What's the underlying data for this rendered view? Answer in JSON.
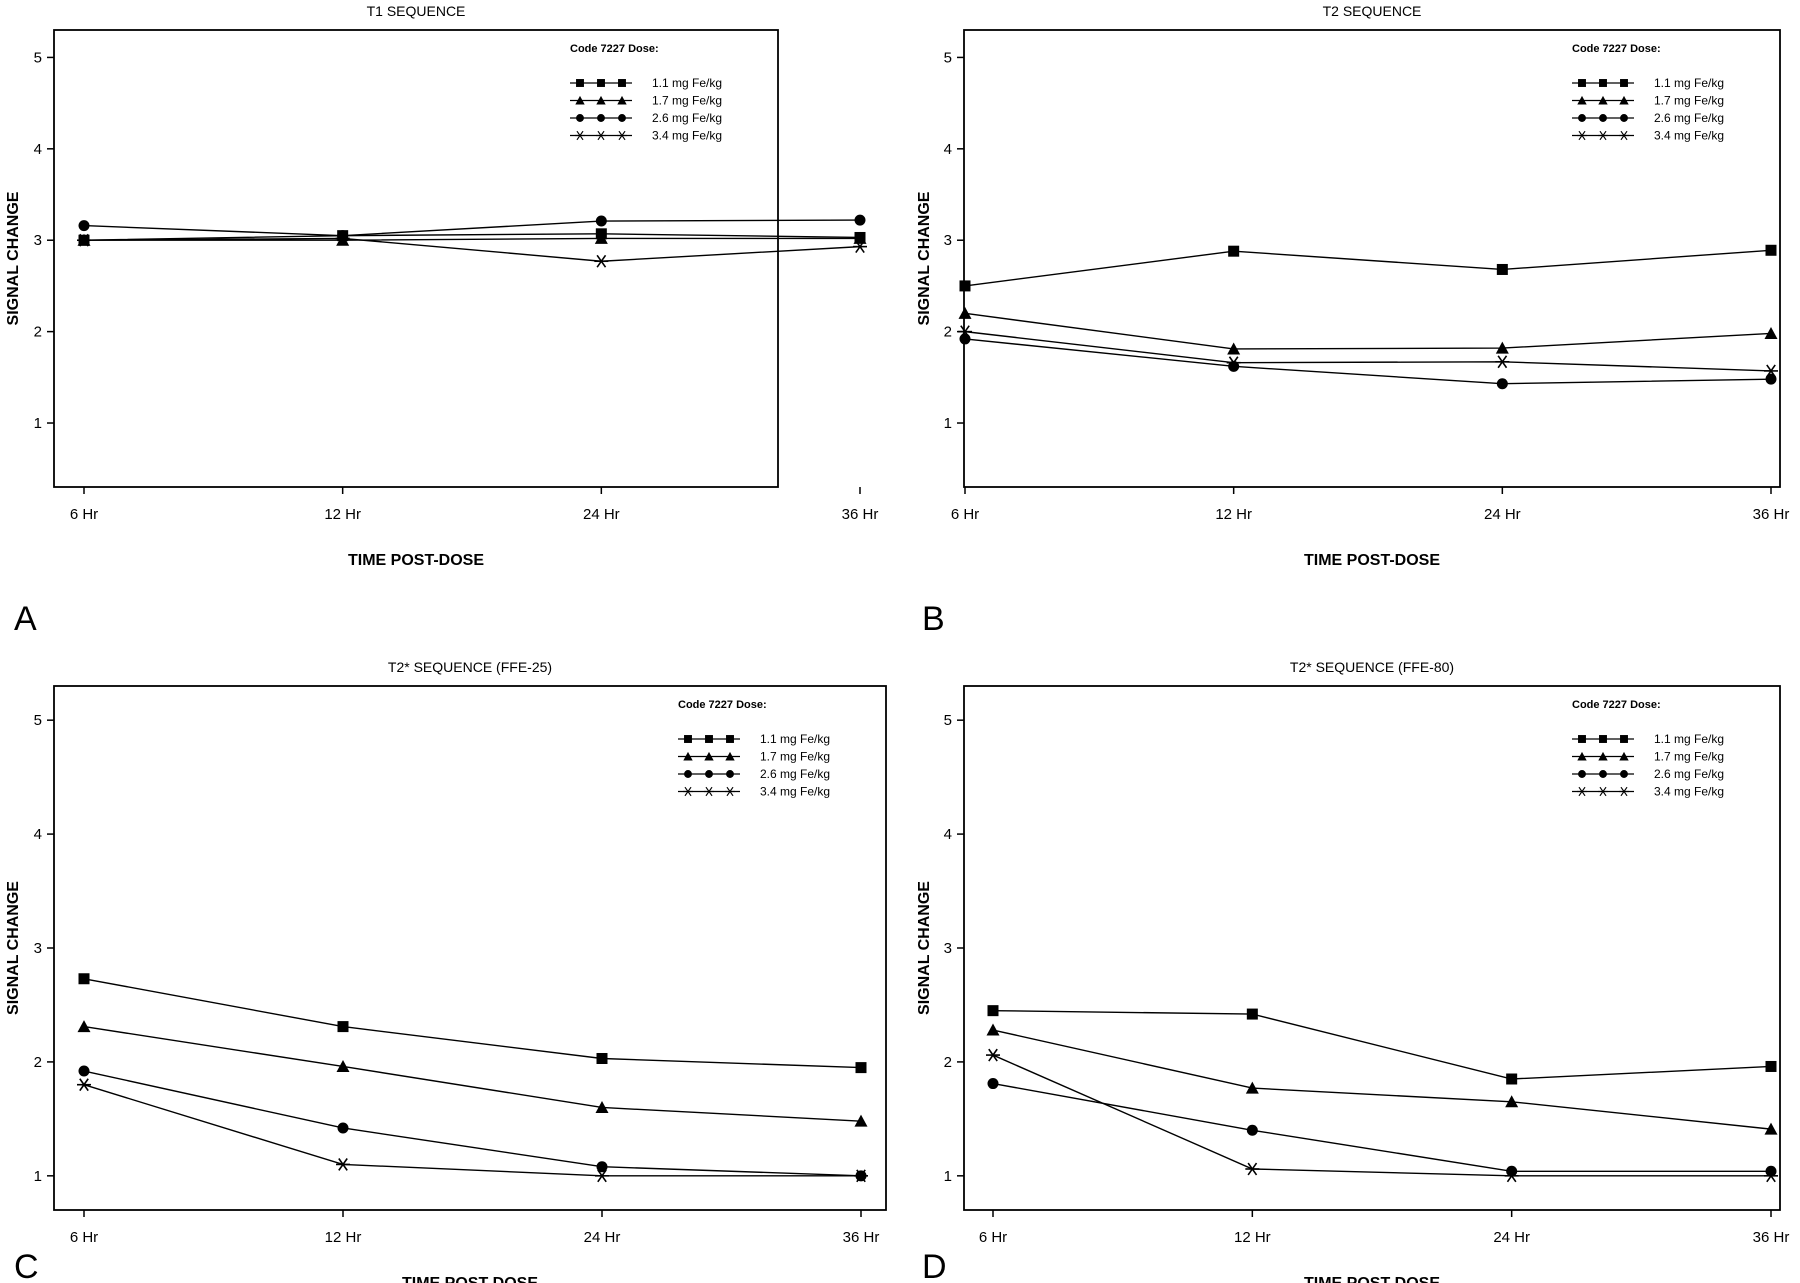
{
  "chart_data": [
    {
      "panel": "A",
      "type": "line",
      "title": "T1 SEQUENCE",
      "xlabel": "TIME POST-DOSE",
      "ylabel": "SIGNAL CHANGE",
      "categories": [
        "6 Hr",
        "12 Hr",
        "24 Hr",
        "36 Hr"
      ],
      "y_ticks": [
        "1",
        "2",
        "3",
        "4",
        "5"
      ],
      "ylim": [
        0.3,
        5.3
      ],
      "legend_title": "Code 7227 Dose:",
      "legend_position": "top-right",
      "series": [
        {
          "name": "1.1 mg Fe/kg",
          "marker": "square",
          "values": [
            3.0,
            3.05,
            3.07,
            3.03
          ]
        },
        {
          "name": "1.7 mg Fe/kg",
          "marker": "triangle",
          "values": [
            3.0,
            3.0,
            3.02,
            3.02
          ]
        },
        {
          "name": "2.6 mg Fe/kg",
          "marker": "circle",
          "values": [
            3.16,
            3.05,
            3.21,
            3.22
          ]
        },
        {
          "name": "3.4 mg Fe/kg",
          "marker": "asterisk",
          "values": [
            3.0,
            3.02,
            2.77,
            2.93
          ]
        }
      ]
    },
    {
      "panel": "B",
      "type": "line",
      "title": "T2 SEQUENCE",
      "xlabel": "TIME POST-DOSE",
      "ylabel": "SIGNAL CHANGE",
      "categories": [
        "6 Hr",
        "12 Hr",
        "24 Hr",
        "36 Hr"
      ],
      "y_ticks": [
        "1",
        "2",
        "3",
        "4",
        "5"
      ],
      "ylim": [
        0.3,
        5.3
      ],
      "legend_title": "Code 7227 Dose:",
      "legend_position": "top-right",
      "series": [
        {
          "name": "1.1 mg Fe/kg",
          "marker": "square",
          "values": [
            2.5,
            2.88,
            2.68,
            2.89
          ]
        },
        {
          "name": "1.7 mg Fe/kg",
          "marker": "triangle",
          "values": [
            2.2,
            1.81,
            1.82,
            1.98
          ]
        },
        {
          "name": "2.6 mg Fe/kg",
          "marker": "circle",
          "values": [
            1.92,
            1.62,
            1.43,
            1.48
          ]
        },
        {
          "name": "3.4 mg Fe/kg",
          "marker": "asterisk",
          "values": [
            2.0,
            1.66,
            1.67,
            1.57
          ]
        }
      ]
    },
    {
      "panel": "C",
      "type": "line",
      "title": "T2* SEQUENCE (FFE-25)",
      "xlabel": "TIME POST-DOSE",
      "ylabel": "SIGNAL CHANGE",
      "categories": [
        "6 Hr",
        "12 Hr",
        "24 Hr",
        "36 Hr"
      ],
      "y_ticks": [
        "1",
        "2",
        "3",
        "4",
        "5"
      ],
      "ylim": [
        0.7,
        5.3
      ],
      "legend_title": "Code 7227 Dose:",
      "legend_position": "top-right",
      "series": [
        {
          "name": "1.1 mg Fe/kg",
          "marker": "square",
          "values": [
            2.73,
            2.31,
            2.03,
            1.95
          ]
        },
        {
          "name": "1.7 mg Fe/kg",
          "marker": "triangle",
          "values": [
            2.31,
            1.96,
            1.6,
            1.48
          ]
        },
        {
          "name": "2.6 mg Fe/kg",
          "marker": "circle",
          "values": [
            1.92,
            1.42,
            1.08,
            1.0
          ]
        },
        {
          "name": "3.4 mg Fe/kg",
          "marker": "asterisk",
          "values": [
            1.8,
            1.1,
            1.0,
            1.0
          ]
        }
      ]
    },
    {
      "panel": "D",
      "type": "line",
      "title": "T2* SEQUENCE (FFE-80)",
      "xlabel": "TIME POST-DOSE",
      "ylabel": "SIGNAL CHANGE",
      "categories": [
        "6 Hr",
        "12 Hr",
        "24 Hr",
        "36 Hr"
      ],
      "y_ticks": [
        "1",
        "2",
        "3",
        "4",
        "5"
      ],
      "ylim": [
        0.7,
        5.3
      ],
      "legend_title": "Code 7227 Dose:",
      "legend_position": "top-right",
      "series": [
        {
          "name": "1.1 mg Fe/kg",
          "marker": "square",
          "values": [
            2.45,
            2.42,
            1.85,
            1.96
          ]
        },
        {
          "name": "1.7 mg Fe/kg",
          "marker": "triangle",
          "values": [
            2.28,
            1.77,
            1.65,
            1.41
          ]
        },
        {
          "name": "2.6 mg Fe/kg",
          "marker": "circle",
          "values": [
            1.81,
            1.4,
            1.04,
            1.04
          ]
        },
        {
          "name": "3.4 mg Fe/kg",
          "marker": "asterisk",
          "values": [
            2.06,
            1.06,
            1.0,
            1.0
          ]
        }
      ]
    }
  ]
}
